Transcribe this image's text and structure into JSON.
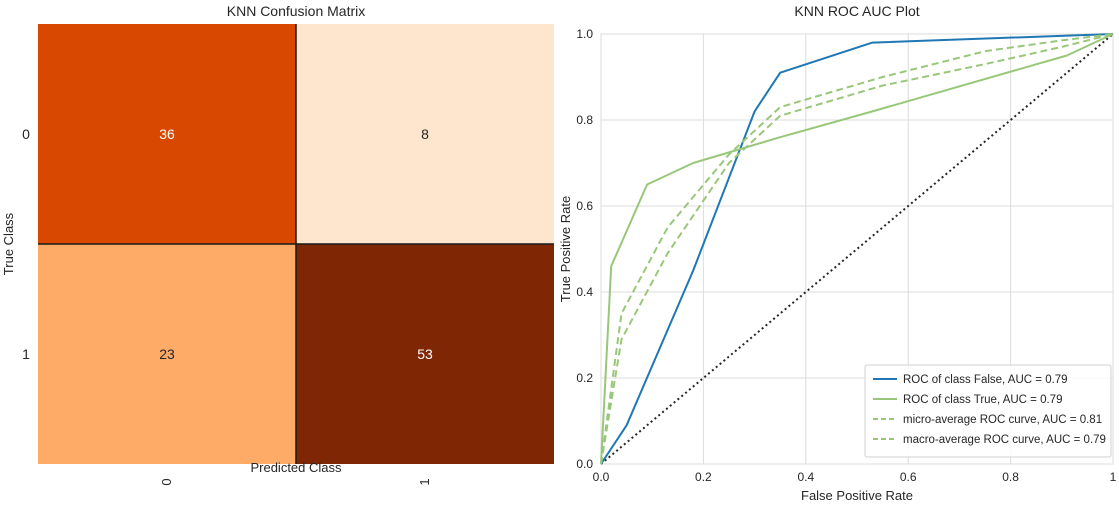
{
  "chart_data": [
    {
      "type": "heatmap",
      "title": "KNN Confusion Matrix",
      "xlabel": "Predicted Class",
      "ylabel": "True Class",
      "x_tick_labels": [
        "0",
        "1"
      ],
      "y_tick_labels": [
        "0",
        "1"
      ],
      "matrix": [
        [
          36,
          8
        ],
        [
          23,
          53
        ]
      ],
      "cell_colors": [
        [
          "#d94801",
          "#fee6ce"
        ],
        [
          "#fdab67",
          "#7f2704"
        ]
      ],
      "cell_text_colors": [
        [
          "#ffffff",
          "#262626"
        ],
        [
          "#262626",
          "#ffffff"
        ]
      ]
    },
    {
      "type": "line",
      "title": "KNN ROC AUC Plot",
      "xlabel": "False Positive Rate",
      "ylabel": "True Positive Rate",
      "xlim": [
        0,
        1
      ],
      "ylim": [
        0,
        1
      ],
      "x_ticks": [
        0.0,
        0.2,
        0.4,
        0.6,
        0.8,
        1.0
      ],
      "x_tick_labels": [
        "0.0",
        "0.2",
        "0.4",
        "0.6",
        "0.8",
        "1"
      ],
      "y_ticks": [
        0.0,
        0.2,
        0.4,
        0.6,
        0.8,
        1.0
      ],
      "y_tick_labels": [
        "0.0",
        "0.2",
        "0.4",
        "0.6",
        "0.8",
        "1.0"
      ],
      "grid": true,
      "legend_position": "lower-right",
      "series": [
        {
          "name": "ROC of class False, AUC = 0.79",
          "color": "#1f77b4",
          "dash": "solid",
          "x": [
            0.0,
            0.05,
            0.18,
            0.3,
            0.35,
            0.53,
            1.0
          ],
          "y": [
            0.0,
            0.09,
            0.45,
            0.82,
            0.91,
            0.98,
            1.0
          ]
        },
        {
          "name": "ROC of class True, AUC = 0.79",
          "color": "#99c77a",
          "dash": "solid",
          "x": [
            0.0,
            0.02,
            0.09,
            0.18,
            0.35,
            0.53,
            0.91,
            1.0
          ],
          "y": [
            0.0,
            0.46,
            0.65,
            0.7,
            0.76,
            0.82,
            0.95,
            1.0
          ]
        },
        {
          "name": "micro-average ROC curve, AUC = 0.81",
          "color": "#99c77a",
          "dash": "dashed",
          "x": [
            0.0,
            0.04,
            0.13,
            0.25,
            0.35,
            0.55,
            0.75,
            0.9,
            1.0
          ],
          "y": [
            0.0,
            0.35,
            0.55,
            0.72,
            0.83,
            0.9,
            0.96,
            0.985,
            1.0
          ]
        },
        {
          "name": "macro-average ROC curve, AUC = 0.79",
          "color": "#99c77a",
          "dash": "dashed",
          "x": [
            0.0,
            0.04,
            0.13,
            0.25,
            0.35,
            0.55,
            0.75,
            0.9,
            1.0
          ],
          "y": [
            0.0,
            0.29,
            0.49,
            0.7,
            0.81,
            0.88,
            0.93,
            0.97,
            1.0
          ]
        }
      ],
      "reference_line": {
        "x": [
          0,
          1
        ],
        "y": [
          0,
          1
        ],
        "color": "#262626",
        "dash": "dotted"
      }
    }
  ]
}
